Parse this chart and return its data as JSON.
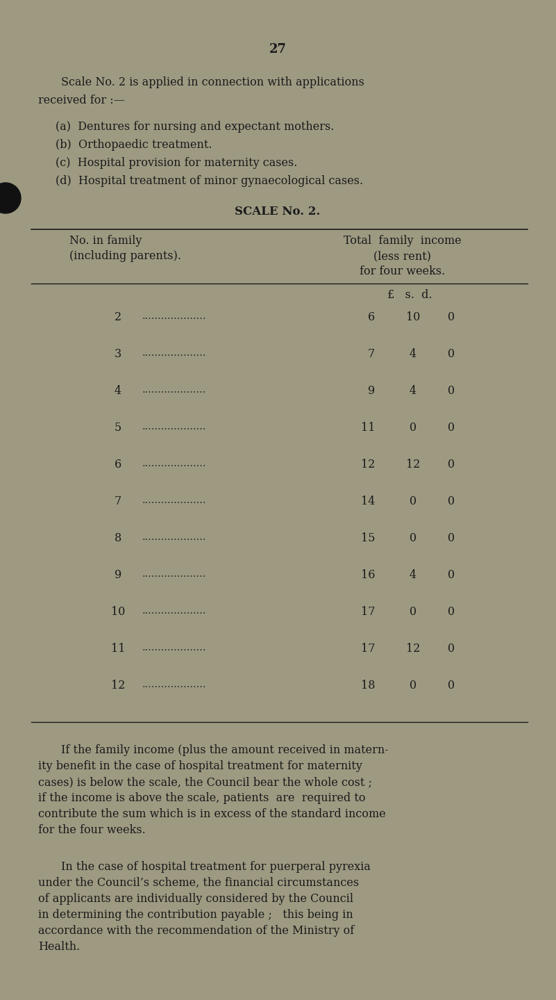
{
  "page_number": "27",
  "bg_color": "#9e9a82",
  "text_color": "#1a1a1a",
  "intro_line1": "Scale No. 2 is applied in connection with applications",
  "intro_line2": "received for :—",
  "items": [
    "(a)  Dentures for nursing and expectant mothers.",
    "(b)  Orthopaedic treatment.",
    "(c)  Hospital provision for maternity cases.",
    "(d)  Hospital treatment of minor gynaecological cases."
  ],
  "scale_title": "SCALE No. 2.",
  "col_header_left1": "No. in family",
  "col_header_left2": "(including parents).",
  "col_header_right1": "Total  family  income",
  "col_header_right2": "(less rent)",
  "col_header_right3": "for four weeks.",
  "col_subheader": "£   s.  d.",
  "table_rows": [
    {
      "num": "2",
      "p": "6",
      "s": "10",
      "d": "0"
    },
    {
      "num": "3",
      "p": "7",
      "s": "4",
      "d": "0"
    },
    {
      "num": "4",
      "p": "9",
      "s": "4",
      "d": "0"
    },
    {
      "num": "5",
      "p": "11",
      "s": "0",
      "d": "0"
    },
    {
      "num": "6",
      "p": "12",
      "s": "12",
      "d": "0"
    },
    {
      "num": "7",
      "p": "14",
      "s": "0",
      "d": "0"
    },
    {
      "num": "8",
      "p": "15",
      "s": "0",
      "d": "0"
    },
    {
      "num": "9",
      "p": "16",
      "s": "4",
      "d": "0"
    },
    {
      "num": "10",
      "p": "17",
      "s": "0",
      "d": "0"
    },
    {
      "num": "11",
      "p": "17",
      "s": "12",
      "d": "0"
    },
    {
      "num": "12",
      "p": "18",
      "s": "0",
      "d": "0"
    }
  ],
  "footer_para1_lines": [
    "If the family income (plus the amount received in matern-",
    "ity benefit in the case of hospital treatment for maternity",
    "cases) is below the scale, the Council bear the whole cost ;",
    "if the income is above the scale, patients  are  required to",
    "contribute the sum which is in excess of the standard income",
    "for the four weeks."
  ],
  "footer_para2_lines": [
    "In the case of hospital treatment for puerperal pyrexia",
    "under the Council’s scheme, the financial circumstances",
    "of applicants are individually considered by the Council",
    "in determining the contribution payable ;   this being in",
    "accordance with the recommendation of the Ministry of",
    "Health."
  ]
}
